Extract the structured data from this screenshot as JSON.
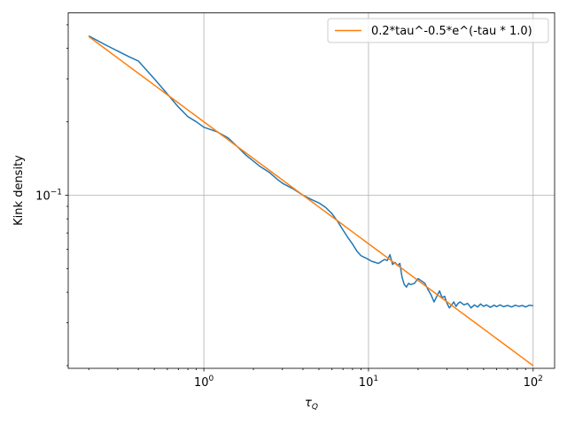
{
  "chart_data": {
    "type": "line",
    "xlabel_base": "τ",
    "xlabel_sub": "Q",
    "ylabel": "Kink density",
    "xscale": "log",
    "yscale": "log",
    "xlim": [
      0.15,
      135
    ],
    "ylim": [
      0.0195,
      0.56
    ],
    "grid": true,
    "legend_position": "top-right",
    "x_ticks": [
      {
        "value": 1,
        "base": "10",
        "exp": "0"
      },
      {
        "value": 10,
        "base": "10",
        "exp": "1"
      },
      {
        "value": 100,
        "base": "10",
        "exp": "2"
      }
    ],
    "y_ticks": [
      {
        "value": 0.1,
        "base": "10",
        "exp": "−1"
      }
    ],
    "series": [
      {
        "type": "line",
        "color": "#1f77b4",
        "x": [
          0.2,
          0.25,
          0.3,
          0.35,
          0.4,
          0.5,
          0.6,
          0.7,
          0.8,
          0.9,
          1.0,
          1.2,
          1.4,
          1.6,
          1.8,
          2.0,
          2.2,
          2.5,
          2.8,
          3.0,
          3.5,
          4.0,
          4.5,
          5.0,
          5.5,
          6.0,
          6.5,
          7.0,
          7.5,
          8.0,
          8.5,
          9.0,
          9.5,
          10.0,
          10.5,
          11.0,
          11.5,
          12.0,
          12.5,
          13.0,
          13.5,
          14.0,
          14.5,
          15.0,
          15.5,
          16.0,
          16.5,
          17.0,
          17.5,
          18.0,
          19.0,
          20.0,
          21.0,
          22.0,
          23.0,
          24.0,
          25.0,
          26.0,
          27.0,
          28.0,
          29.0,
          30.0,
          31.0,
          32.0,
          33.0,
          34.0,
          35.0,
          36.0,
          38.0,
          40.0,
          42.0,
          44.0,
          46.0,
          48.0,
          50.0,
          52.0,
          55.0,
          58.0,
          60.0,
          63.0,
          66.0,
          70.0,
          74.0,
          78.0,
          82.0,
          86.0,
          90.0,
          95.0,
          100.0
        ],
        "y": [
          0.45,
          0.415,
          0.39,
          0.37,
          0.355,
          0.3,
          0.26,
          0.23,
          0.21,
          0.2,
          0.19,
          0.182,
          0.172,
          0.158,
          0.146,
          0.138,
          0.131,
          0.124,
          0.116,
          0.112,
          0.106,
          0.1,
          0.096,
          0.093,
          0.089,
          0.084,
          0.078,
          0.072,
          0.067,
          0.063,
          0.059,
          0.0565,
          0.0555,
          0.0545,
          0.0535,
          0.053,
          0.0525,
          0.0535,
          0.0545,
          0.054,
          0.057,
          0.052,
          0.053,
          0.0515,
          0.0525,
          0.046,
          0.043,
          0.042,
          0.0435,
          0.043,
          0.0435,
          0.0455,
          0.0445,
          0.0435,
          0.041,
          0.039,
          0.0365,
          0.0385,
          0.0405,
          0.038,
          0.0385,
          0.036,
          0.0345,
          0.0355,
          0.0365,
          0.035,
          0.036,
          0.0365,
          0.0355,
          0.036,
          0.0345,
          0.0355,
          0.0348,
          0.0358,
          0.035,
          0.0355,
          0.0347,
          0.0354,
          0.0349,
          0.0355,
          0.0349,
          0.0353,
          0.0348,
          0.0354,
          0.035,
          0.0353,
          0.0348,
          0.0354,
          0.0352
        ]
      },
      {
        "type": "line",
        "name": "0.2*tau^-0.5*e^(-tau * 1.0)",
        "color": "#ff7f0e",
        "formula": "0.2 * x^-0.5",
        "x": [
          0.2,
          100
        ]
      }
    ]
  }
}
